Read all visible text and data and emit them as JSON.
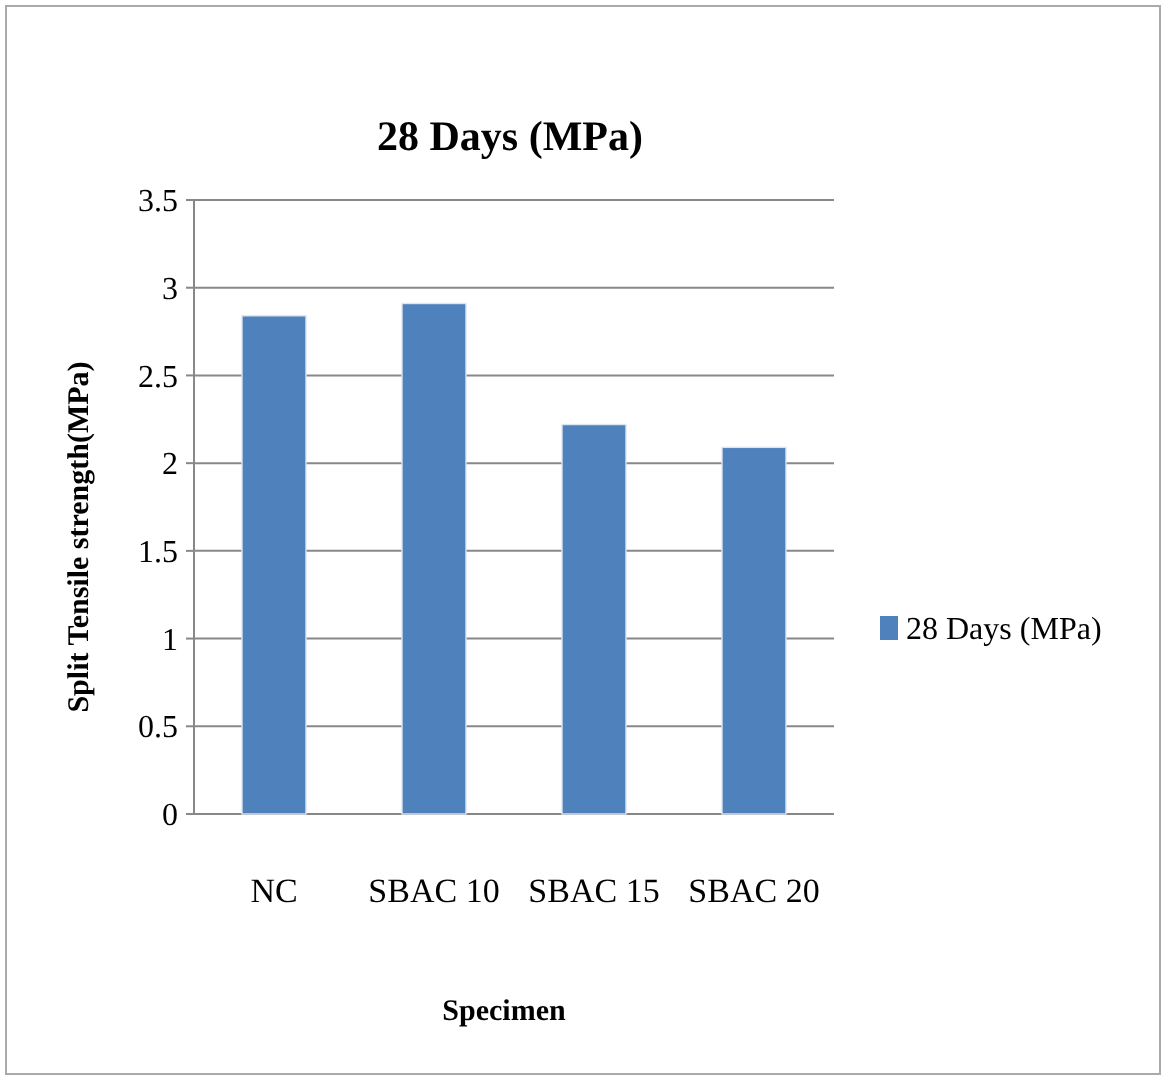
{
  "chart_data": {
    "type": "bar",
    "title": "28 Days (MPa)",
    "xlabel": "Specimen",
    "ylabel": "Split Tensile strength(MPa)",
    "categories": [
      "NC",
      "SBAC 10",
      "SBAC 15",
      "SBAC 20"
    ],
    "series": [
      {
        "name": "28 Days (MPa)",
        "color": "#4f81bd",
        "values": [
          2.84,
          2.91,
          2.22,
          2.09
        ]
      }
    ],
    "ylim": [
      0,
      3.5
    ],
    "yticks": [
      0,
      0.5,
      1,
      1.5,
      2,
      2.5,
      3,
      3.5
    ],
    "grid": "y",
    "legend": "right"
  }
}
